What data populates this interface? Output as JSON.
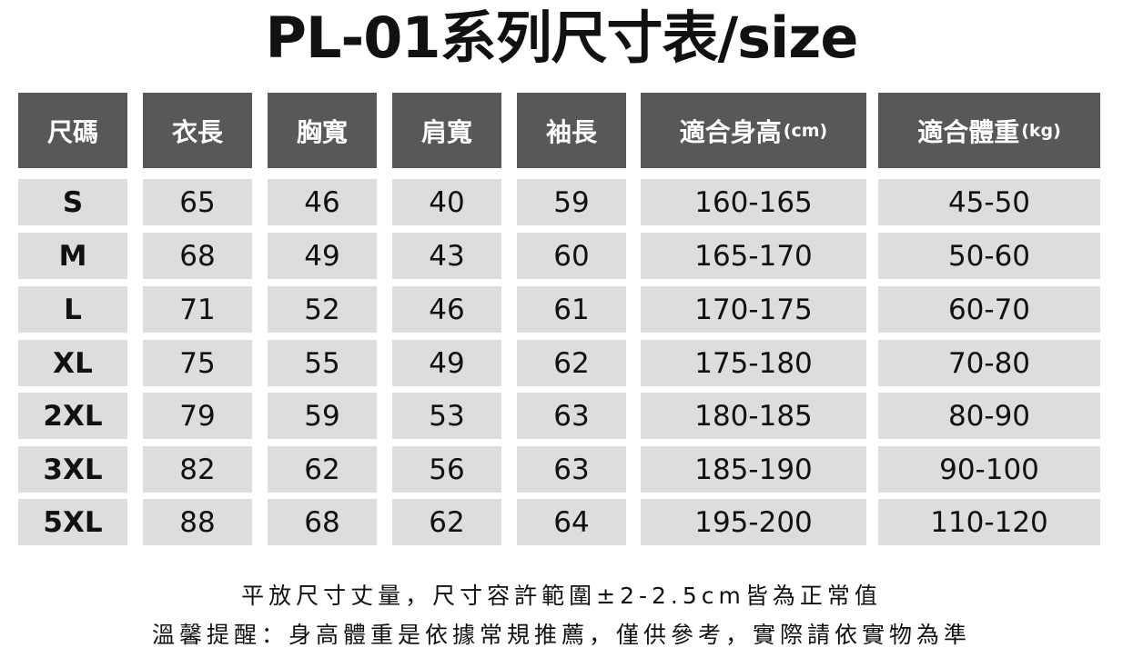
{
  "header": {
    "title": "PL-01系列尺寸表/size"
  },
  "table": {
    "headers": [
      {
        "text": "尺碼"
      },
      {
        "text": "衣長"
      },
      {
        "text": "胸寬"
      },
      {
        "text": "肩寬"
      },
      {
        "text": "袖長"
      },
      {
        "text": "適合身高",
        "unit": "(cm)"
      },
      {
        "text": "適合體重",
        "unit": "(kg)"
      }
    ],
    "rows": [
      [
        "S",
        65,
        46,
        40,
        59,
        "160-165",
        "45-50"
      ],
      [
        "M",
        68,
        49,
        43,
        60,
        "165-170",
        "50-60"
      ],
      [
        "L",
        71,
        52,
        46,
        61,
        "170-175",
        "60-70"
      ],
      [
        "XL",
        75,
        55,
        49,
        62,
        "175-180",
        "70-80"
      ],
      [
        "2XL",
        79,
        59,
        53,
        63,
        "180-185",
        "80-90"
      ],
      [
        "3XL",
        82,
        62,
        56,
        63,
        "185-190",
        "90-100"
      ],
      [
        "5XL",
        88,
        68,
        62,
        64,
        "195-200",
        "110-120"
      ]
    ]
  },
  "notes": [
    "平放尺寸丈量，尺寸容許範圍±2-2.5cm皆為正常值",
    "溫馨提醒：身高體重是依據常規推薦，僅供參考，實際請依實物為準"
  ]
}
